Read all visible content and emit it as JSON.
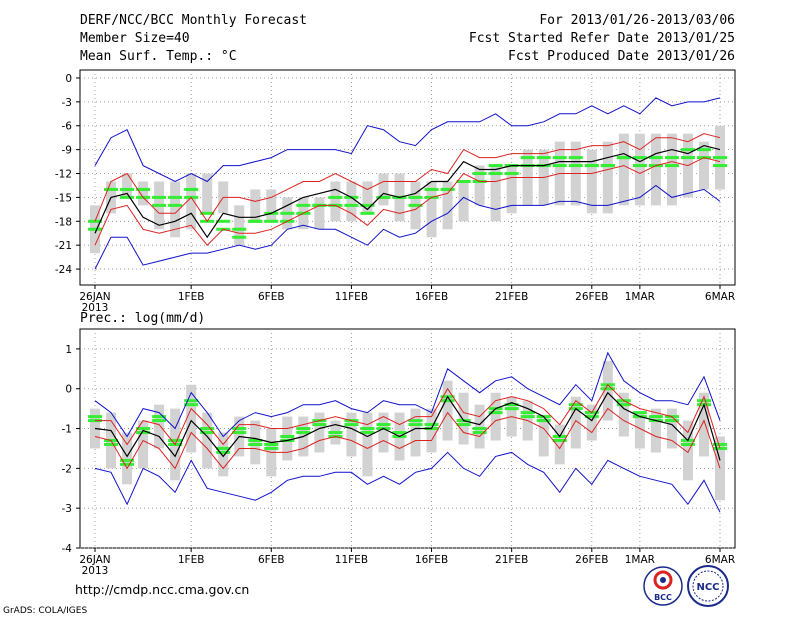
{
  "header": {
    "title": "DERF/NCC/BCC Monthly Forecast",
    "member_size": "Member Size=40",
    "period": "For 2013/01/26-2013/03/06",
    "refer_date": "Fcst Started Refer Date 2013/01/25",
    "produced_date": "Fcst Produced Date 2013/01/26"
  },
  "footer": {
    "url": "http://cmdp.ncc.cma.gov.cn",
    "credit": "GrADS: COLA/IGES",
    "logo_bcc": "BCC",
    "logo_ncc": "NCC"
  },
  "colors": {
    "box": "#d2d2d2",
    "mean": "#000000",
    "spread": "#dd2222",
    "envelope": "#1111cc",
    "marker": "#33ee33"
  },
  "chart_data": [
    {
      "type": "ensemble-boxplot",
      "title": "Mean Surf. Temp.: °C",
      "ylim": [
        -26,
        1
      ],
      "yticks": [
        -24,
        -21,
        -18,
        -15,
        -12,
        -9,
        -6,
        -3,
        0
      ],
      "x_start": "2013-01-26",
      "n_days": 40,
      "xtick_days": [
        0,
        6,
        11,
        16,
        21,
        26,
        31,
        34,
        39
      ],
      "xtick_labels": [
        "26JAN",
        "1FEB",
        "6FEB",
        "11FEB",
        "16FEB",
        "21FEB",
        "26FEB",
        "1MAR",
        "6MAR"
      ],
      "xtick_sublabel": "2013",
      "box_low": [
        -22,
        -17,
        -15,
        -16,
        -19,
        -20,
        -19,
        -17,
        -17,
        -21,
        -18,
        -18,
        -19,
        -19,
        -19,
        -18,
        -18,
        -17,
        -16,
        -18,
        -19,
        -20,
        -19,
        -18,
        -16,
        -18,
        -17,
        -16,
        -16,
        -16,
        -16,
        -17,
        -17,
        -16,
        -16,
        -16,
        -16,
        -15,
        -14,
        -14
      ],
      "box_high": [
        -16,
        -13,
        -12,
        -13,
        -13,
        -13,
        -12,
        -12,
        -13,
        -16,
        -14,
        -14,
        -15,
        -15,
        -15,
        -13,
        -13,
        -13,
        -12,
        -12,
        -13,
        -13,
        -13,
        -13,
        -11,
        -11,
        -11,
        -9,
        -9,
        -8,
        -8,
        -9,
        -8,
        -7,
        -7,
        -7,
        -7,
        -7,
        -8,
        -6
      ],
      "hi_markers": [
        -18,
        -14,
        -14,
        -14,
        -15,
        -15,
        -14,
        -17,
        -18,
        -19,
        -18,
        -17,
        -17,
        -16,
        -16,
        -15,
        -15,
        -16,
        -15,
        -15,
        -15,
        -14,
        -14,
        -13,
        -12,
        -11,
        -11,
        -10,
        -10,
        -10,
        -10,
        -11,
        -11,
        -10,
        -10,
        -10,
        -10,
        -9,
        -9,
        -10
      ],
      "low_markers": [
        -19,
        -14,
        -15,
        -15,
        -16,
        -16,
        -15,
        -18,
        -19,
        -20,
        -18,
        -18,
        -18,
        -17,
        -16,
        -16,
        -16,
        -17,
        -15,
        -15,
        -16,
        -15,
        -14,
        -13,
        -13,
        -12,
        -12,
        -11,
        -11,
        -11,
        -11,
        -11,
        -11,
        -10,
        -11,
        -11,
        -11,
        -10,
        -10,
        -11
      ],
      "mean": [
        -19.5,
        -15,
        -14.5,
        -17.5,
        -18.5,
        -18,
        -17,
        -20,
        -17,
        -17.5,
        -17.5,
        -17,
        -16,
        -15,
        -14.5,
        -14,
        -15,
        -16.5,
        -14.5,
        -15,
        -14.5,
        -13,
        -13,
        -10.5,
        -11.5,
        -11.5,
        -11,
        -11,
        -11,
        -10.5,
        -10.5,
        -10.5,
        -10,
        -9.5,
        -10.5,
        -9.5,
        -9,
        -9.5,
        -8.5,
        -9
      ],
      "spread_high": [
        -18,
        -13,
        -12,
        -15,
        -17,
        -17,
        -15,
        -18,
        -15,
        -15,
        -15.5,
        -15,
        -14,
        -13,
        -13,
        -12,
        -13,
        -14,
        -13,
        -13,
        -13,
        -11.5,
        -12,
        -9,
        -10,
        -10,
        -9.5,
        -9.5,
        -9.5,
        -9,
        -9,
        -8.5,
        -8.5,
        -8,
        -9,
        -7.5,
        -7.5,
        -8,
        -7,
        -7.5
      ],
      "spread_low": [
        -21,
        -16.5,
        -16,
        -19,
        -19.5,
        -19,
        -18.5,
        -21,
        -19,
        -19.5,
        -19.5,
        -19,
        -18,
        -17,
        -16,
        -16,
        -17,
        -18.5,
        -16.5,
        -17,
        -16.5,
        -15,
        -14.5,
        -12,
        -13,
        -13,
        -12.5,
        -12.5,
        -12.5,
        -12,
        -12,
        -12,
        -11.5,
        -11,
        -12,
        -11,
        -10.5,
        -11,
        -10,
        -10.5
      ],
      "env_high": [
        -11,
        -7.5,
        -6.5,
        -11,
        -12,
        -13,
        -12,
        -13,
        -11,
        -11,
        -10.5,
        -10,
        -9,
        -9,
        -9,
        -9,
        -9.5,
        -6,
        -6.5,
        -8,
        -8.5,
        -6.5,
        -5.5,
        -5.5,
        -5.5,
        -4.5,
        -6,
        -6,
        -5.5,
        -4.5,
        -4.5,
        -3.5,
        -4.5,
        -3.5,
        -4.5,
        -2.5,
        -3.5,
        -3,
        -3,
        -2.5
      ],
      "env_low": [
        -24,
        -20,
        -20,
        -23.5,
        -23,
        -22.5,
        -22,
        -22,
        -21.5,
        -21,
        -21.5,
        -21,
        -19,
        -18.5,
        -19,
        -19,
        -20,
        -21,
        -19,
        -20,
        -19.5,
        -18,
        -17,
        -15,
        -16,
        -16.5,
        -16,
        -16,
        -16,
        -15.5,
        -15.5,
        -16,
        -16,
        -15.5,
        -15,
        -13.5,
        -15,
        -14.5,
        -14,
        -15.5
      ]
    },
    {
      "type": "ensemble-boxplot",
      "title": "Prec.: log(mm/d)",
      "ylim": [
        -4,
        1.5
      ],
      "yticks": [
        -4,
        -3,
        -2,
        -1,
        0,
        1
      ],
      "x_start": "2013-01-26",
      "n_days": 40,
      "xtick_days": [
        0,
        6,
        11,
        16,
        21,
        26,
        31,
        34,
        39
      ],
      "xtick_labels": [
        "26JAN",
        "1FEB",
        "6FEB",
        "11FEB",
        "16FEB",
        "21FEB",
        "26FEB",
        "1MAR",
        "6MAR"
      ],
      "xtick_sublabel": "2013",
      "box_low": [
        -1.5,
        -2,
        -2.4,
        -2,
        -1.5,
        -2.3,
        -1.6,
        -2,
        -2.2,
        -1.7,
        -1.9,
        -2.2,
        -1.8,
        -1.7,
        -1.6,
        -1.4,
        -1.7,
        -2.2,
        -1.6,
        -1.8,
        -1.7,
        -1.6,
        -1.3,
        -1.4,
        -1.5,
        -1.3,
        -1.2,
        -1.3,
        -1.7,
        -1.9,
        -1.5,
        -1.3,
        -0.8,
        -1.2,
        -1.5,
        -1.6,
        -1.5,
        -2.3,
        -1.7,
        -2.8
      ],
      "box_high": [
        -0.5,
        -0.6,
        -1.1,
        -0.8,
        -0.4,
        -0.5,
        0.1,
        -0.6,
        -1.1,
        -0.7,
        -0.8,
        -1.0,
        -0.7,
        -0.7,
        -0.6,
        -0.8,
        -0.6,
        -0.6,
        -0.6,
        -0.6,
        -0.5,
        -0.5,
        0.2,
        -0.1,
        -0.4,
        -0.1,
        -0.2,
        -0.3,
        -0.7,
        -0.9,
        -0.2,
        -0.4,
        0.7,
        -0.1,
        -0.6,
        -0.5,
        -0.5,
        -0.8,
        -0.1,
        -1.2
      ],
      "hi_markers": [
        -0.7,
        -1.3,
        -1.8,
        -1.0,
        -0.7,
        -1.3,
        -0.3,
        -1.0,
        -1.5,
        -1.0,
        -1.3,
        -1.4,
        -1.2,
        -1.0,
        -0.8,
        -1.1,
        -0.8,
        -1.0,
        -0.9,
        -1.1,
        -0.8,
        -0.9,
        -0.2,
        -0.8,
        -1.0,
        -0.5,
        -0.4,
        -0.6,
        -0.7,
        -1.2,
        -0.4,
        -0.6,
        0.1,
        -0.3,
        -0.6,
        -0.7,
        -0.7,
        -1.3,
        -0.3,
        -1.4
      ],
      "low_markers": [
        -0.8,
        -1.4,
        -1.9,
        -1.1,
        -0.8,
        -1.4,
        -0.4,
        -1.1,
        -1.6,
        -1.1,
        -1.4,
        -1.5,
        -1.3,
        -1.1,
        -0.9,
        -1.2,
        -0.9,
        -1.1,
        -1.0,
        -1.2,
        -0.9,
        -1.0,
        -0.3,
        -0.9,
        -1.1,
        -0.6,
        -0.5,
        -0.7,
        -0.8,
        -1.3,
        -0.5,
        -0.7,
        0.0,
        -0.4,
        -0.7,
        -0.8,
        -0.8,
        -1.4,
        -0.4,
        -1.5
      ],
      "mean": [
        -1.0,
        -1.05,
        -1.7,
        -1.05,
        -1.2,
        -1.7,
        -0.8,
        -1.2,
        -1.7,
        -1.2,
        -1.25,
        -1.35,
        -1.3,
        -1.2,
        -1.0,
        -0.9,
        -1.0,
        -1.2,
        -1.0,
        -1.2,
        -1.0,
        -1.0,
        -0.2,
        -0.8,
        -0.9,
        -0.5,
        -0.35,
        -0.5,
        -0.7,
        -1.2,
        -0.5,
        -0.8,
        -0.1,
        -0.5,
        -0.7,
        -0.8,
        -0.9,
        -1.3,
        -0.4,
        -1.8
      ],
      "spread_high": [
        -0.8,
        -0.8,
        -1.4,
        -0.8,
        -0.9,
        -1.4,
        -0.5,
        -0.9,
        -1.4,
        -0.9,
        -0.9,
        -1.0,
        -1.0,
        -0.9,
        -0.8,
        -0.7,
        -0.8,
        -0.9,
        -0.7,
        -0.9,
        -0.7,
        -0.7,
        0.0,
        -0.6,
        -0.7,
        -0.3,
        -0.2,
        -0.3,
        -0.5,
        -0.9,
        -0.3,
        -0.6,
        0.1,
        -0.3,
        -0.5,
        -0.6,
        -0.7,
        -1.1,
        -0.2,
        -1.5
      ],
      "spread_low": [
        -1.2,
        -1.3,
        -2.0,
        -1.3,
        -1.5,
        -2.0,
        -1.1,
        -1.5,
        -2.0,
        -1.5,
        -1.5,
        -1.6,
        -1.6,
        -1.5,
        -1.3,
        -1.2,
        -1.3,
        -1.5,
        -1.3,
        -1.5,
        -1.3,
        -1.3,
        -0.6,
        -1.1,
        -1.2,
        -0.8,
        -0.7,
        -0.8,
        -1.0,
        -1.5,
        -0.8,
        -1.1,
        -0.5,
        -0.8,
        -1.0,
        -1.2,
        -1.3,
        -1.6,
        -0.8,
        -2.0
      ],
      "env_high": [
        -0.3,
        -0.6,
        -1.2,
        -0.5,
        -0.6,
        -1.0,
        -0.1,
        -0.6,
        -1.2,
        -0.8,
        -0.6,
        -0.7,
        -0.6,
        -0.4,
        -0.4,
        -0.3,
        -0.5,
        -0.6,
        -0.3,
        -0.4,
        -0.4,
        -0.6,
        0.5,
        0.2,
        -0.1,
        0.2,
        0.3,
        0.0,
        -0.2,
        -0.4,
        0.1,
        -0.3,
        0.9,
        0.2,
        -0.1,
        -0.3,
        -0.3,
        -0.4,
        0.3,
        -0.8
      ],
      "env_low": [
        -2.0,
        -2.1,
        -2.9,
        -2.0,
        -2.2,
        -2.6,
        -1.8,
        -2.5,
        -2.6,
        -2.7,
        -2.8,
        -2.6,
        -2.3,
        -2.2,
        -2.2,
        -2.1,
        -2.1,
        -2.4,
        -2.2,
        -2.4,
        -2.1,
        -2.0,
        -1.6,
        -2.0,
        -2.2,
        -1.7,
        -1.6,
        -1.9,
        -2.1,
        -2.6,
        -2.0,
        -2.4,
        -1.8,
        -2.0,
        -2.2,
        -2.3,
        -2.4,
        -2.9,
        -2.3,
        -3.1
      ]
    }
  ]
}
